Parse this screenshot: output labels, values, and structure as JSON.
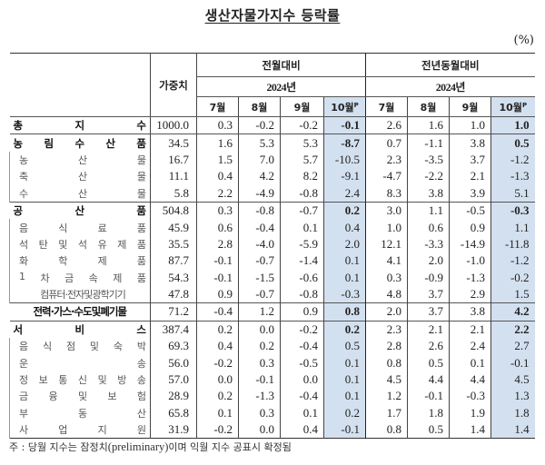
{
  "title": "생산자물가지수 등락률",
  "unit": "(%)",
  "header": {
    "weight_label": "가중치",
    "group1": "전월대비",
    "group2": "전년동월대비",
    "year1": "2024년",
    "year2": "2024년",
    "months": [
      "7월",
      "8월",
      "9월",
      "10월"
    ],
    "prelim_mark": "P"
  },
  "highlight_color": "#d3e0ef",
  "rows": [
    {
      "label": [
        "총",
        "지",
        "수"
      ],
      "type": "major",
      "weight": "1000.0",
      "mom": [
        "0.3",
        "-0.2",
        "-0.2",
        "-0.1"
      ],
      "yoy": [
        "2.6",
        "1.6",
        "1.0",
        "1.0"
      ]
    },
    {
      "label": [
        "농",
        "림",
        "수",
        "산",
        "품"
      ],
      "type": "major",
      "weight": "34.5",
      "mom": [
        "1.6",
        "5.3",
        "5.3",
        "-8.7"
      ],
      "yoy": [
        "0.7",
        "-1.1",
        "3.8",
        "0.5"
      ]
    },
    {
      "label": [
        "농",
        "산",
        "물"
      ],
      "type": "sub",
      "weight": "16.7",
      "mom": [
        "1.5",
        "7.0",
        "5.7",
        "-10.5"
      ],
      "yoy": [
        "2.3",
        "-3.5",
        "3.7",
        "-1.2"
      ]
    },
    {
      "label": [
        "축",
        "산",
        "물"
      ],
      "type": "sub",
      "weight": "11.1",
      "mom": [
        "0.4",
        "4.2",
        "8.2",
        "-9.1"
      ],
      "yoy": [
        "-4.7",
        "-2.2",
        "2.1",
        "-1.3"
      ]
    },
    {
      "label": [
        "수",
        "산",
        "물"
      ],
      "type": "sub",
      "weight": "5.8",
      "mom": [
        "2.2",
        "-4.9",
        "-0.8",
        "2.4"
      ],
      "yoy": [
        "8.3",
        "3.8",
        "3.9",
        "5.1"
      ]
    },
    {
      "label": [
        "공",
        "산",
        "품"
      ],
      "type": "major",
      "weight": "504.8",
      "mom": [
        "0.3",
        "-0.8",
        "-0.7",
        "0.2"
      ],
      "yoy": [
        "3.0",
        "1.1",
        "-0.5",
        "-0.3"
      ]
    },
    {
      "label": [
        "음",
        "식",
        "료",
        "품"
      ],
      "type": "sub",
      "weight": "45.9",
      "mom": [
        "0.6",
        "-0.4",
        "0.1",
        "0.4"
      ],
      "yoy": [
        "1.0",
        "0.6",
        "0.9",
        "1.1"
      ]
    },
    {
      "label": [
        "석",
        "탄",
        "및",
        "석",
        "유",
        "제",
        "품"
      ],
      "type": "sub",
      "weight": "35.5",
      "mom": [
        "2.8",
        "-4.0",
        "-5.9",
        "2.0"
      ],
      "yoy": [
        "12.1",
        "-3.3",
        "-14.9",
        "-11.8"
      ]
    },
    {
      "label": [
        "화",
        "학",
        "제",
        "품"
      ],
      "type": "sub",
      "weight": "87.7",
      "mom": [
        "-0.1",
        "-0.7",
        "-1.4",
        "0.1"
      ],
      "yoy": [
        "4.1",
        "2.0",
        "-1.0",
        "-1.2"
      ]
    },
    {
      "label": [
        "1",
        "차",
        "금",
        "속",
        "제",
        "품"
      ],
      "type": "sub",
      "weight": "54.3",
      "mom": [
        "-0.1",
        "-1.5",
        "-0.6",
        "0.1"
      ],
      "yoy": [
        "0.3",
        "-0.9",
        "-1.3",
        "-0.2"
      ]
    },
    {
      "label": [
        "컴퓨터·전자및광학기기"
      ],
      "type": "sub",
      "weight": "47.8",
      "mom": [
        "0.9",
        "-0.7",
        "-0.8",
        "-0.3"
      ],
      "yoy": [
        "4.8",
        "3.7",
        "2.9",
        "1.5"
      ]
    },
    {
      "label": [
        "전력·가스·수도및폐기물"
      ],
      "type": "major",
      "weight": "71.2",
      "mom": [
        "-0.4",
        "1.2",
        "0.9",
        "0.8"
      ],
      "yoy": [
        "2.0",
        "3.7",
        "3.8",
        "4.2"
      ]
    },
    {
      "label": [
        "서",
        "비",
        "스"
      ],
      "type": "major",
      "weight": "387.4",
      "mom": [
        "0.2",
        "0.0",
        "-0.2",
        "0.2"
      ],
      "yoy": [
        "2.3",
        "2.1",
        "2.1",
        "2.2"
      ]
    },
    {
      "label": [
        "음",
        "식",
        "점",
        "및",
        "숙",
        "박"
      ],
      "type": "sub",
      "weight": "69.3",
      "mom": [
        "0.4",
        "0.2",
        "-0.4",
        "0.5"
      ],
      "yoy": [
        "2.8",
        "2.6",
        "2.4",
        "2.7"
      ]
    },
    {
      "label": [
        "운",
        "송"
      ],
      "type": "sub",
      "weight": "56.0",
      "mom": [
        "-0.2",
        "0.3",
        "-0.5",
        "0.1"
      ],
      "yoy": [
        "0.8",
        "0.5",
        "0.1",
        "-0.1"
      ]
    },
    {
      "label": [
        "정",
        "보",
        "통",
        "신",
        "및",
        "방",
        "송"
      ],
      "type": "sub",
      "weight": "57.0",
      "mom": [
        "0.0",
        "-0.1",
        "0.0",
        "0.1"
      ],
      "yoy": [
        "4.5",
        "4.4",
        "4.4",
        "4.5"
      ]
    },
    {
      "label": [
        "금",
        "융",
        "및",
        "보",
        "험"
      ],
      "type": "sub",
      "weight": "28.9",
      "mom": [
        "0.2",
        "-1.3",
        "-0.4",
        "0.1"
      ],
      "yoy": [
        "1.2",
        "-0.1",
        "-0.3",
        "1.3"
      ]
    },
    {
      "label": [
        "부",
        "동",
        "산"
      ],
      "type": "sub",
      "weight": "65.8",
      "mom": [
        "0.1",
        "0.3",
        "0.1",
        "0.2"
      ],
      "yoy": [
        "1.7",
        "1.8",
        "1.9",
        "1.8"
      ]
    },
    {
      "label": [
        "사",
        "업",
        "지",
        "원"
      ],
      "type": "sub",
      "weight": "31.9",
      "mom": [
        "-0.2",
        "0.0",
        "0.4",
        "-0.1"
      ],
      "yoy": [
        "0.8",
        "0.5",
        "1.4",
        "1.4"
      ]
    }
  ],
  "footnote": {
    "prefix": "주 : 당월 지수는 잠정치",
    "english": "(preliminary)",
    "suffix": "이며 익월 지수 공표시 확정됨"
  }
}
